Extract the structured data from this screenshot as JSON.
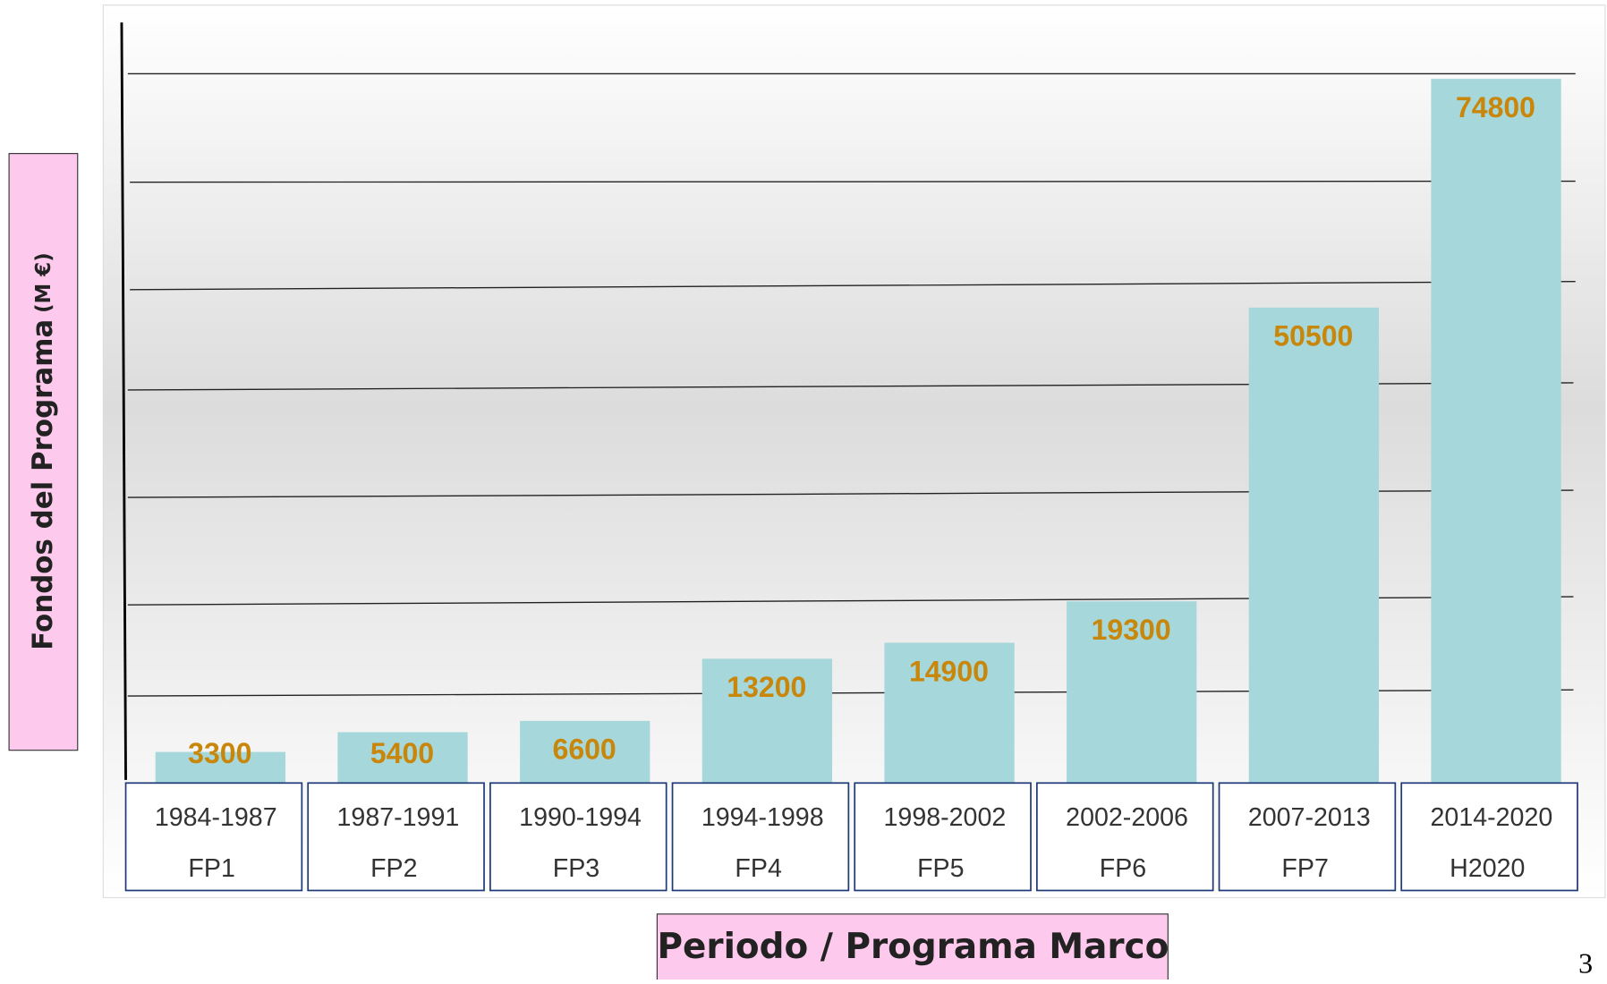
{
  "chart_data": {
    "type": "bar",
    "categories": [
      "1984-1987",
      "1987-1991",
      "1990-1994",
      "1994-1998",
      "1998-2002",
      "2002-2006",
      "2007-2013",
      "2014-2020"
    ],
    "programs": [
      "FP1",
      "FP2",
      "FP3",
      "FP4",
      "FP5",
      "FP6",
      "FP7",
      "H2020"
    ],
    "values": [
      3300,
      5400,
      6600,
      13200,
      14900,
      19300,
      50500,
      74800
    ],
    "color": "#a6d8db",
    "ylim": [
      0,
      81000
    ],
    "y_label": "Fondos del Programa",
    "y_unit": "(M €)",
    "x_label": "Periodo / Programa Marco",
    "page_number": "3"
  }
}
